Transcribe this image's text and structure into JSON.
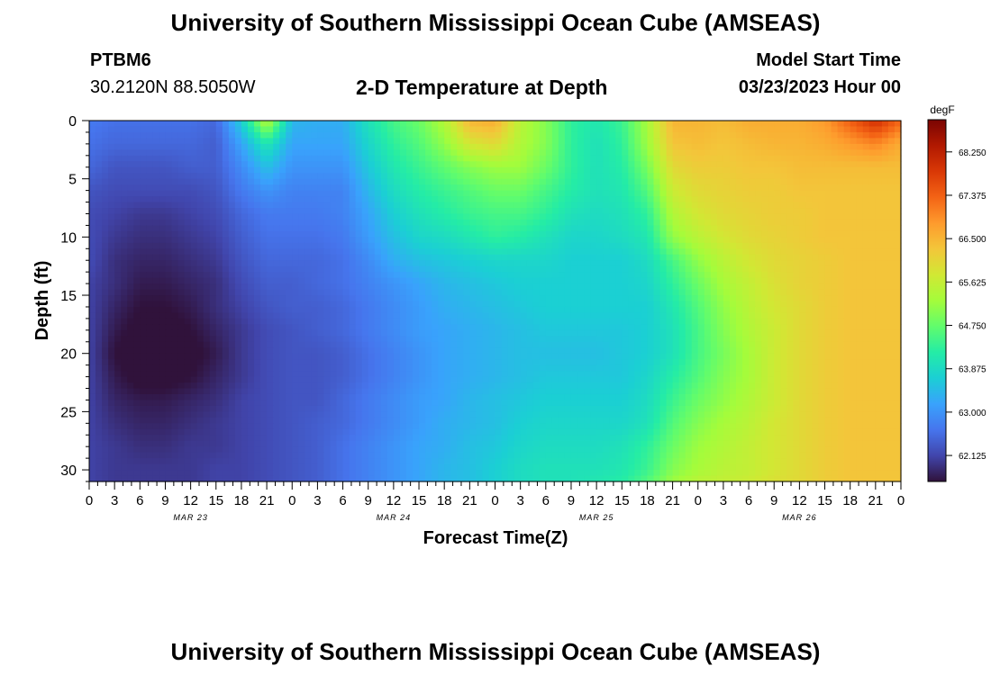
{
  "header": {
    "title": "University of Southern Mississippi Ocean Cube (AMSEAS)",
    "station_id": "PTBM6",
    "coords": "30.2120N  88.5050W",
    "subtitle": "2-D Temperature at Depth",
    "model_start_label": "Model Start Time",
    "model_start_value": "03/23/2023 Hour 00"
  },
  "footer": {
    "title": "University of Southern Mississippi Ocean Cube (AMSEAS)"
  },
  "chart_data": {
    "type": "heatmap",
    "title": "2-D Temperature at Depth",
    "xlabel": "Forecast Time(Z)",
    "ylabel": "Depth (ft)",
    "x_range_hours": [
      0,
      96
    ],
    "x_ticks": [
      "0",
      "3",
      "6",
      "9",
      "12",
      "15",
      "18",
      "21",
      "0",
      "3",
      "6",
      "9",
      "12",
      "15",
      "18",
      "21",
      "0",
      "3",
      "6",
      "9",
      "12",
      "15",
      "18",
      "21",
      "0",
      "3",
      "6",
      "9",
      "12",
      "15",
      "18",
      "21",
      "0"
    ],
    "date_labels": [
      "MAR 23",
      "MAR 24",
      "MAR 25",
      "MAR 26"
    ],
    "ylim": [
      0,
      31
    ],
    "y_ticks": [
      0,
      5,
      10,
      15,
      20,
      25,
      30
    ],
    "y_inverted": true,
    "colorbar": {
      "unit": "degF",
      "min": 61.6,
      "max": 68.9,
      "tick_values": [
        62.125,
        63.0,
        63.875,
        64.75,
        65.625,
        66.5,
        67.375,
        68.25
      ],
      "tick_labels": [
        "62.125",
        "63.000",
        "63.875",
        "64.750",
        "65.625",
        "66.500",
        "67.375",
        "68.250"
      ],
      "colormap": [
        "#30123b",
        "#4145ab",
        "#4675ed",
        "#39a2fc",
        "#1bcfd4",
        "#24eca6",
        "#61fc6c",
        "#a4fc3b",
        "#d1e834",
        "#f3c63a",
        "#fe9b2d",
        "#f36315",
        "#d93806",
        "#b11901",
        "#7a0402"
      ]
    },
    "temperature_degF": {
      "x_hours": [
        0,
        3,
        6,
        9,
        12,
        15,
        18,
        21,
        24,
        27,
        30,
        33,
        36,
        39,
        42,
        45,
        48,
        51,
        54,
        57,
        60,
        63,
        66,
        69,
        72,
        75,
        78,
        81,
        84,
        87,
        90,
        93,
        96
      ],
      "depth_ft": [
        0,
        2,
        4,
        6,
        8,
        10,
        12,
        14,
        16,
        18,
        20,
        22,
        24,
        26,
        28,
        30,
        31
      ],
      "values": [
        [
          62.7,
          62.6,
          62.6,
          62.6,
          62.6,
          62.5,
          63.7,
          65.5,
          63.4,
          63.3,
          63.3,
          64.0,
          64.5,
          64.8,
          65.4,
          66.5,
          66.6,
          65.5,
          65.0,
          64.3,
          64.1,
          64.4,
          65.3,
          66.5,
          66.5,
          66.4,
          66.6,
          66.6,
          66.6,
          66.8,
          67.4,
          68.0,
          67.3
        ],
        [
          62.6,
          62.5,
          62.5,
          62.5,
          62.5,
          62.4,
          63.2,
          64.1,
          63.2,
          63.2,
          63.2,
          63.8,
          64.3,
          64.6,
          65.1,
          65.8,
          66.0,
          65.4,
          65.0,
          64.3,
          64.0,
          64.3,
          65.2,
          66.3,
          66.4,
          66.3,
          66.4,
          66.5,
          66.5,
          66.6,
          66.8,
          67.0,
          66.6
        ],
        [
          62.5,
          62.3,
          62.3,
          62.3,
          62.4,
          62.4,
          62.9,
          63.5,
          63.0,
          63.0,
          63.0,
          63.6,
          64.1,
          64.4,
          64.7,
          65.0,
          65.2,
          65.2,
          64.8,
          64.3,
          64.0,
          64.2,
          64.9,
          66.0,
          66.2,
          66.2,
          66.3,
          66.3,
          66.4,
          66.4,
          66.4,
          66.4,
          66.4
        ],
        [
          62.3,
          62.2,
          62.2,
          62.2,
          62.2,
          62.3,
          62.7,
          63.0,
          62.8,
          62.8,
          62.8,
          63.4,
          63.9,
          64.2,
          64.4,
          64.6,
          64.8,
          64.8,
          64.5,
          64.2,
          64.0,
          64.1,
          64.6,
          65.7,
          66.0,
          66.1,
          66.2,
          66.2,
          66.3,
          66.3,
          66.3,
          66.3,
          66.3
        ],
        [
          62.2,
          62.1,
          62.0,
          62.0,
          62.1,
          62.2,
          62.5,
          62.7,
          62.7,
          62.7,
          62.8,
          63.2,
          63.7,
          64.0,
          64.2,
          64.4,
          64.5,
          64.5,
          64.3,
          64.0,
          63.9,
          64.0,
          64.3,
          65.4,
          65.8,
          66.0,
          66.1,
          66.2,
          66.2,
          66.3,
          66.3,
          66.3,
          66.3
        ],
        [
          62.2,
          62.0,
          61.9,
          61.9,
          62.0,
          62.1,
          62.4,
          62.6,
          62.6,
          62.6,
          62.7,
          63.1,
          63.5,
          63.8,
          63.9,
          64.1,
          64.3,
          64.2,
          64.0,
          63.8,
          63.8,
          63.9,
          64.1,
          65.1,
          65.5,
          65.8,
          66.0,
          66.1,
          66.2,
          66.3,
          66.3,
          66.3,
          66.3
        ],
        [
          62.2,
          61.9,
          61.8,
          61.8,
          61.9,
          62.0,
          62.3,
          62.5,
          62.5,
          62.5,
          62.6,
          62.9,
          63.3,
          63.5,
          63.6,
          63.7,
          63.8,
          63.8,
          63.8,
          63.7,
          63.7,
          63.7,
          63.9,
          64.5,
          65.1,
          65.5,
          65.8,
          66.0,
          66.1,
          66.2,
          66.3,
          66.3,
          66.3
        ],
        [
          62.1,
          61.9,
          61.7,
          61.7,
          61.8,
          61.9,
          62.2,
          62.4,
          62.4,
          62.5,
          62.6,
          62.8,
          63.0,
          63.2,
          63.4,
          63.5,
          63.6,
          63.7,
          63.7,
          63.7,
          63.7,
          63.7,
          63.8,
          64.3,
          64.8,
          65.3,
          65.6,
          65.9,
          66.1,
          66.2,
          66.3,
          66.3,
          66.3
        ],
        [
          62.1,
          61.8,
          61.6,
          61.6,
          61.7,
          61.9,
          62.1,
          62.3,
          62.4,
          62.4,
          62.5,
          62.7,
          62.9,
          63.1,
          63.3,
          63.4,
          63.5,
          63.6,
          63.7,
          63.7,
          63.7,
          63.7,
          63.7,
          64.1,
          64.6,
          65.1,
          65.5,
          65.8,
          66.0,
          66.2,
          66.3,
          66.3,
          66.3
        ],
        [
          62.1,
          61.7,
          61.5,
          61.5,
          61.6,
          61.8,
          62.0,
          62.2,
          62.3,
          62.4,
          62.5,
          62.7,
          62.9,
          63.1,
          63.2,
          63.3,
          63.4,
          63.5,
          63.6,
          63.6,
          63.6,
          63.6,
          63.7,
          64.0,
          64.5,
          65.0,
          65.4,
          65.7,
          66.0,
          66.2,
          66.3,
          66.3,
          66.3
        ],
        [
          62.1,
          61.6,
          61.4,
          61.4,
          61.5,
          61.7,
          62.0,
          62.2,
          62.3,
          62.3,
          62.4,
          62.6,
          62.8,
          63.0,
          63.2,
          63.3,
          63.4,
          63.5,
          63.5,
          63.5,
          63.5,
          63.6,
          63.7,
          64.0,
          64.5,
          64.9,
          65.3,
          65.7,
          66.0,
          66.2,
          66.3,
          66.3,
          66.3
        ],
        [
          62.1,
          61.7,
          61.5,
          61.5,
          61.6,
          61.8,
          62.0,
          62.2,
          62.3,
          62.3,
          62.4,
          62.6,
          62.8,
          63.0,
          63.2,
          63.3,
          63.4,
          63.5,
          63.6,
          63.6,
          63.6,
          63.6,
          63.8,
          64.2,
          64.6,
          65.0,
          65.3,
          65.7,
          66.0,
          66.2,
          66.3,
          66.3,
          66.3
        ],
        [
          62.1,
          61.8,
          61.7,
          61.7,
          61.8,
          61.9,
          62.1,
          62.2,
          62.3,
          62.3,
          62.5,
          62.7,
          62.9,
          63.1,
          63.2,
          63.4,
          63.5,
          63.6,
          63.7,
          63.7,
          63.7,
          63.7,
          63.9,
          64.4,
          64.8,
          65.1,
          65.4,
          65.7,
          66.0,
          66.2,
          66.3,
          66.3,
          66.3
        ],
        [
          62.1,
          61.9,
          61.8,
          61.8,
          61.9,
          62.0,
          62.1,
          62.2,
          62.3,
          62.4,
          62.5,
          62.7,
          62.9,
          63.1,
          63.3,
          63.4,
          63.5,
          63.7,
          63.8,
          63.8,
          63.8,
          63.8,
          64.0,
          64.6,
          65.0,
          65.3,
          65.5,
          65.8,
          66.0,
          66.2,
          66.3,
          66.3,
          66.3
        ],
        [
          62.1,
          62.0,
          61.9,
          61.9,
          62.0,
          62.0,
          62.1,
          62.2,
          62.3,
          62.4,
          62.6,
          62.8,
          63.0,
          63.2,
          63.3,
          63.5,
          63.6,
          63.8,
          63.9,
          63.9,
          63.9,
          64.0,
          64.3,
          64.8,
          65.2,
          65.4,
          65.6,
          65.8,
          66.0,
          66.2,
          66.3,
          66.3,
          66.3
        ],
        [
          62.1,
          62.0,
          62.0,
          62.0,
          62.0,
          62.1,
          62.1,
          62.2,
          62.3,
          62.4,
          62.6,
          62.8,
          63.0,
          63.2,
          63.4,
          63.5,
          63.7,
          63.9,
          64.0,
          64.0,
          64.0,
          64.1,
          64.4,
          65.0,
          65.3,
          65.5,
          65.6,
          65.8,
          66.0,
          66.2,
          66.3,
          66.3,
          66.3
        ],
        [
          62.1,
          62.0,
          62.0,
          62.0,
          62.0,
          62.1,
          62.1,
          62.2,
          62.3,
          62.4,
          62.6,
          62.8,
          63.0,
          63.2,
          63.4,
          63.5,
          63.7,
          63.9,
          64.0,
          64.0,
          64.1,
          64.2,
          64.6,
          65.2,
          65.5,
          65.6,
          65.7,
          65.9,
          66.0,
          66.2,
          66.3,
          66.3,
          66.3
        ]
      ]
    }
  }
}
